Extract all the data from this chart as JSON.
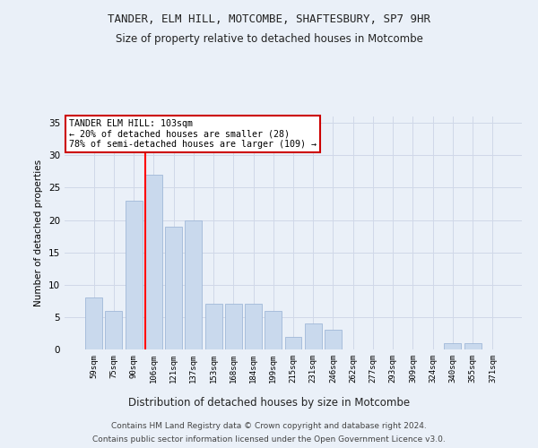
{
  "title": "TANDER, ELM HILL, MOTCOMBE, SHAFTESBURY, SP7 9HR",
  "subtitle": "Size of property relative to detached houses in Motcombe",
  "xlabel": "Distribution of detached houses by size in Motcombe",
  "ylabel": "Number of detached properties",
  "categories": [
    "59sqm",
    "75sqm",
    "90sqm",
    "106sqm",
    "121sqm",
    "137sqm",
    "153sqm",
    "168sqm",
    "184sqm",
    "199sqm",
    "215sqm",
    "231sqm",
    "246sqm",
    "262sqm",
    "277sqm",
    "293sqm",
    "309sqm",
    "324sqm",
    "340sqm",
    "355sqm",
    "371sqm"
  ],
  "values": [
    8,
    6,
    23,
    27,
    19,
    20,
    7,
    7,
    7,
    6,
    2,
    4,
    3,
    0,
    0,
    0,
    0,
    0,
    1,
    1,
    0
  ],
  "bar_color": "#c9d9ed",
  "bar_edgecolor": "#a0b8d8",
  "grid_color": "#d0d8e8",
  "background_color": "#eaf0f8",
  "red_line_index": 3,
  "annotation_text": "TANDER ELM HILL: 103sqm\n← 20% of detached houses are smaller (28)\n78% of semi-detached houses are larger (109) →",
  "annotation_box_color": "#ffffff",
  "annotation_box_edgecolor": "#cc0000",
  "ylim": [
    0,
    36
  ],
  "yticks": [
    0,
    5,
    10,
    15,
    20,
    25,
    30,
    35
  ],
  "footer_line1": "Contains HM Land Registry data © Crown copyright and database right 2024.",
  "footer_line2": "Contains public sector information licensed under the Open Government Licence v3.0."
}
